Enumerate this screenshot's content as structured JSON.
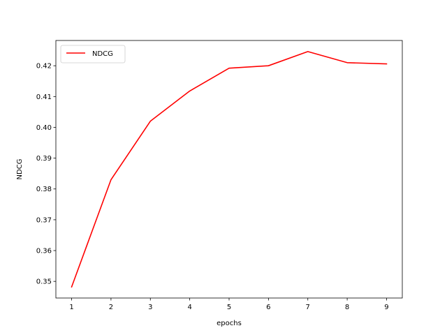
{
  "chart_data": {
    "type": "line",
    "x": [
      1,
      2,
      3,
      4,
      5,
      6,
      7,
      8,
      9
    ],
    "series": [
      {
        "name": "NDCG",
        "color": "#ff0000",
        "values": [
          0.3482,
          0.383,
          0.402,
          0.4118,
          0.4192,
          0.42,
          0.4246,
          0.421,
          0.4206
        ]
      }
    ],
    "xlabel": "epochs",
    "ylabel": "NDCG",
    "xlim": [
      0.6,
      9.4
    ],
    "ylim": [
      0.3446,
      0.4282
    ],
    "xticks": [
      1,
      2,
      3,
      4,
      5,
      6,
      7,
      8,
      9
    ],
    "yticks": [
      0.35,
      0.36,
      0.37,
      0.38,
      0.39,
      0.4,
      0.41,
      0.42
    ],
    "ytick_labels": [
      "0.35",
      "0.36",
      "0.37",
      "0.38",
      "0.39",
      "0.40",
      "0.41",
      "0.42"
    ],
    "legend_position": "top-left",
    "grid": false
  }
}
